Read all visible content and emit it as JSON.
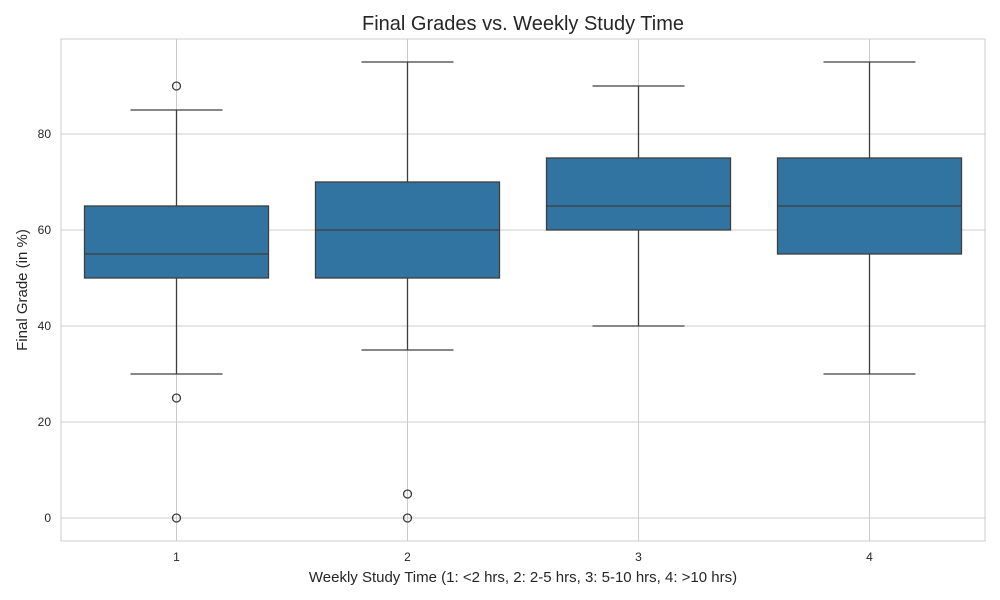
{
  "chart_data": {
    "type": "box",
    "title": "Final Grades vs. Weekly Study Time",
    "xlabel": "Weekly Study Time (1: <2 hrs, 2: 2-5 hrs, 3: 5-10 hrs, 4: >10 hrs)",
    "ylabel": "Final Grade (in %)",
    "categories": [
      "1",
      "2",
      "3",
      "4"
    ],
    "ylim": [
      -5,
      100
    ],
    "yticks": [
      0,
      20,
      40,
      60,
      80
    ],
    "grid": true,
    "box_color": "#3274a1",
    "line_color": "#3d3d3d",
    "boxes": [
      {
        "category": "1",
        "whisker_low": 30,
        "q1": 50,
        "median": 55,
        "q3": 65,
        "whisker_high": 85,
        "outliers": [
          90,
          25,
          0
        ]
      },
      {
        "category": "2",
        "whisker_low": 35,
        "q1": 50,
        "median": 60,
        "q3": 70,
        "whisker_high": 95,
        "outliers": [
          5,
          0
        ]
      },
      {
        "category": "3",
        "whisker_low": 40,
        "q1": 60,
        "median": 65,
        "q3": 75,
        "whisker_high": 90,
        "outliers": []
      },
      {
        "category": "4",
        "whisker_low": 30,
        "q1": 55,
        "median": 65,
        "q3": 75,
        "whisker_high": 95,
        "outliers": []
      }
    ]
  }
}
